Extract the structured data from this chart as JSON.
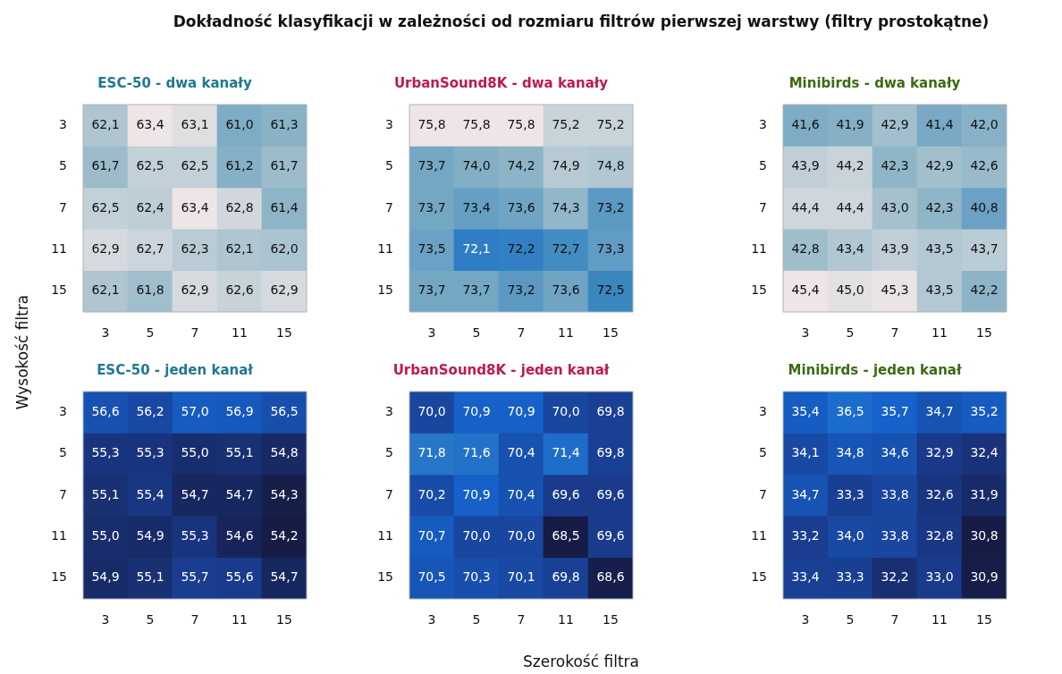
{
  "chart_data": [
    {
      "type": "heatmap",
      "title": "ESC-50 - dwa kanały",
      "annotations": [
        "Dokładność klasyfikacji w zależności od rozmiaru filtrów pierwszej warstwy (filtry prostokątne)"
      ],
      "ylabel": "Wysokość filtra",
      "categories": [
        "3",
        "5",
        "7",
        "11",
        "15"
      ],
      "y_categories": [
        "3",
        "5",
        "7",
        "11",
        "15"
      ],
      "cells": [
        [
          62.1,
          63.4,
          63.1,
          61.0,
          61.3
        ],
        [
          61.7,
          62.5,
          62.5,
          61.2,
          61.7
        ],
        [
          62.5,
          62.4,
          63.4,
          62.8,
          61.4
        ],
        [
          62.9,
          62.7,
          62.3,
          62.1,
          62.0
        ],
        [
          62.1,
          61.8,
          62.9,
          62.6,
          62.9
        ]
      ],
      "cell_labels": [
        [
          "62,1",
          "63,4",
          "63,1",
          "61,0",
          "61,3"
        ],
        [
          "61,7",
          "62,5",
          "62,5",
          "61,2",
          "61,7"
        ],
        [
          "62,5",
          "62,4",
          "63,4",
          "62,8",
          "61,4"
        ],
        [
          "62,9",
          "62,7",
          "62,3",
          "62,1",
          "62,0"
        ],
        [
          "62,1",
          "61,8",
          "62,9",
          "62,6",
          "62,9"
        ]
      ]
    },
    {
      "type": "heatmap",
      "title": "UrbanSound8K - dwa kanały",
      "categories": [
        "3",
        "5",
        "7",
        "11",
        "15"
      ],
      "y_categories": [
        "3",
        "5",
        "7",
        "11",
        "15"
      ],
      "cells": [
        [
          75.8,
          75.8,
          75.8,
          75.2,
          75.2
        ],
        [
          73.7,
          74.0,
          74.2,
          74.9,
          74.8
        ],
        [
          73.7,
          73.4,
          73.6,
          74.3,
          73.2
        ],
        [
          73.5,
          72.1,
          72.2,
          72.7,
          73.3
        ],
        [
          73.7,
          73.7,
          73.2,
          73.6,
          72.5
        ]
      ],
      "cell_labels": [
        [
          "75,8",
          "75,8",
          "75,8",
          "75,2",
          "75,2"
        ],
        [
          "73,7",
          "74,0",
          "74,2",
          "74,9",
          "74,8"
        ],
        [
          "73,7",
          "73,4",
          "73,6",
          "74,3",
          "73,2"
        ],
        [
          "73,5",
          "72,1",
          "72,2",
          "72,7",
          "73,3"
        ],
        [
          "73,7",
          "73,7",
          "73,2",
          "73,6",
          "72,5"
        ]
      ]
    },
    {
      "type": "heatmap",
      "title": "Minibirds - dwa kanały",
      "categories": [
        "3",
        "5",
        "7",
        "11",
        "15"
      ],
      "y_categories": [
        "3",
        "5",
        "7",
        "11",
        "15"
      ],
      "cells": [
        [
          41.6,
          41.9,
          42.9,
          41.4,
          42.0
        ],
        [
          43.9,
          44.2,
          42.3,
          42.9,
          42.6
        ],
        [
          44.4,
          44.4,
          43.0,
          42.3,
          40.8
        ],
        [
          42.8,
          43.4,
          43.9,
          43.5,
          43.7
        ],
        [
          45.4,
          45.0,
          45.3,
          43.5,
          42.2
        ]
      ],
      "cell_labels": [
        [
          "41,6",
          "41,9",
          "42,9",
          "41,4",
          "42,0"
        ],
        [
          "43,9",
          "44,2",
          "42,3",
          "42,9",
          "42,6"
        ],
        [
          "44,4",
          "44,4",
          "43,0",
          "42,3",
          "40,8"
        ],
        [
          "42,8",
          "43,4",
          "43,9",
          "43,5",
          "43,7"
        ],
        [
          "45,4",
          "45,0",
          "45,3",
          "43,5",
          "42,2"
        ]
      ]
    },
    {
      "type": "heatmap",
      "title": "ESC-50 - jeden kanał",
      "categories": [
        "3",
        "5",
        "7",
        "11",
        "15"
      ],
      "y_categories": [
        "3",
        "5",
        "7",
        "11",
        "15"
      ],
      "cells": [
        [
          56.6,
          56.2,
          57.0,
          56.9,
          56.5
        ],
        [
          55.3,
          55.3,
          55.0,
          55.1,
          54.8
        ],
        [
          55.1,
          55.4,
          54.7,
          54.7,
          54.3
        ],
        [
          55.0,
          54.9,
          55.3,
          54.6,
          54.2
        ],
        [
          54.9,
          55.1,
          55.7,
          55.6,
          54.7
        ]
      ],
      "cell_labels": [
        [
          "56,6",
          "56,2",
          "57,0",
          "56,9",
          "56,5"
        ],
        [
          "55,3",
          "55,3",
          "55,0",
          "55,1",
          "54,8"
        ],
        [
          "55,1",
          "55,4",
          "54,7",
          "54,7",
          "54,3"
        ],
        [
          "55,0",
          "54,9",
          "55,3",
          "54,6",
          "54,2"
        ],
        [
          "54,9",
          "55,1",
          "55,7",
          "55,6",
          "54,7"
        ]
      ]
    },
    {
      "type": "heatmap",
      "title": "UrbanSound8K - jeden kanał",
      "xlabel": "Szerokość filtra",
      "categories": [
        "3",
        "5",
        "7",
        "11",
        "15"
      ],
      "y_categories": [
        "3",
        "5",
        "7",
        "11",
        "15"
      ],
      "cells": [
        [
          70.0,
          70.9,
          70.9,
          70.0,
          69.8
        ],
        [
          71.8,
          71.6,
          70.4,
          71.4,
          69.8
        ],
        [
          70.2,
          70.9,
          70.4,
          69.6,
          69.6
        ],
        [
          70.7,
          70.0,
          70.0,
          68.5,
          69.6
        ],
        [
          70.5,
          70.3,
          70.1,
          69.8,
          68.6
        ]
      ],
      "cell_labels": [
        [
          "70,0",
          "70,9",
          "70,9",
          "70,0",
          "69,8"
        ],
        [
          "71,8",
          "71,6",
          "70,4",
          "71,4",
          "69,8"
        ],
        [
          "70,2",
          "70,9",
          "70,4",
          "69,6",
          "69,6"
        ],
        [
          "70,7",
          "70,0",
          "70,0",
          "68,5",
          "69,6"
        ],
        [
          "70,5",
          "70,3",
          "70,1",
          "69,8",
          "68,6"
        ]
      ]
    },
    {
      "type": "heatmap",
      "title": "Minibirds - jeden kanał",
      "categories": [
        "3",
        "5",
        "7",
        "11",
        "15"
      ],
      "y_categories": [
        "3",
        "5",
        "7",
        "11",
        "15"
      ],
      "cells": [
        [
          35.4,
          36.5,
          35.7,
          34.7,
          35.2
        ],
        [
          34.1,
          34.8,
          34.6,
          32.9,
          32.4
        ],
        [
          34.7,
          33.3,
          33.8,
          32.6,
          31.9
        ],
        [
          33.2,
          34.0,
          33.8,
          32.8,
          30.8
        ],
        [
          33.4,
          33.3,
          32.2,
          33.0,
          30.9
        ]
      ],
      "cell_labels": [
        [
          "35,4",
          "36,5",
          "35,7",
          "34,7",
          "35,2"
        ],
        [
          "34,1",
          "34,8",
          "34,6",
          "32,9",
          "32,4"
        ],
        [
          "34,7",
          "33,3",
          "33,8",
          "32,6",
          "31,9"
        ],
        [
          "33,2",
          "34,0",
          "33,8",
          "32,8",
          "30,8"
        ],
        [
          "33,4",
          "33,3",
          "32,2",
          "33,0",
          "30,9"
        ]
      ]
    }
  ]
}
